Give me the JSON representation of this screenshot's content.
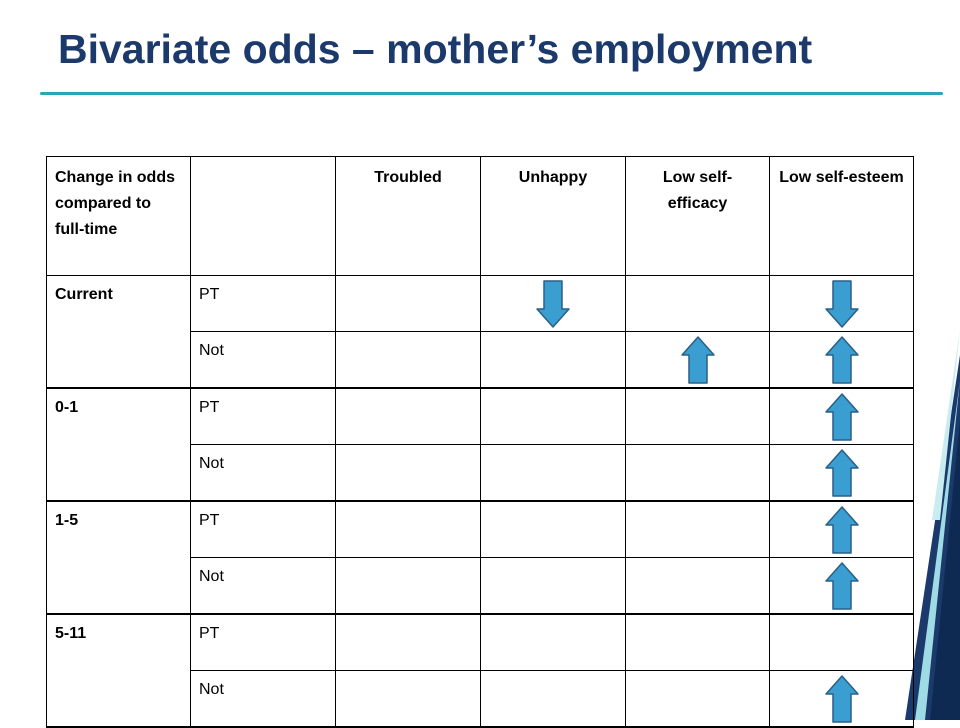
{
  "slide": {
    "title": "Bivariate odds – mother’s employment"
  },
  "colors": {
    "title": "#1b3a6b",
    "rule": "#2aa6b8",
    "arrow_fill": "#3a9ed0",
    "arrow_stroke": "#2a5f86"
  },
  "table": {
    "header": {
      "first": "Change in odds compared to full-time",
      "second": "",
      "columns": [
        "Troubled",
        "Unhappy",
        "Low self-efficacy",
        "Low self-esteem"
      ]
    },
    "groups": [
      {
        "label": "Current",
        "rows": [
          {
            "type": "PT",
            "cells": [
              "",
              "down-arrow",
              "",
              "down-arrow"
            ]
          },
          {
            "type": "Not",
            "cells": [
              "",
              "",
              "up-arrow",
              "up-arrow"
            ]
          }
        ]
      },
      {
        "label": "0-1",
        "rows": [
          {
            "type": "PT",
            "cells": [
              "",
              "",
              "",
              "up-arrow"
            ]
          },
          {
            "type": "Not",
            "cells": [
              "",
              "",
              "",
              "up-arrow"
            ]
          }
        ]
      },
      {
        "label": "1-5",
        "rows": [
          {
            "type": "PT",
            "cells": [
              "",
              "",
              "",
              "up-arrow"
            ]
          },
          {
            "type": "Not",
            "cells": [
              "",
              "",
              "",
              "up-arrow"
            ]
          }
        ]
      },
      {
        "label": "5-11",
        "rows": [
          {
            "type": "PT",
            "cells": [
              "",
              "",
              "",
              ""
            ]
          },
          {
            "type": "Not",
            "cells": [
              "",
              "",
              "",
              "up-arrow"
            ]
          }
        ]
      }
    ]
  }
}
